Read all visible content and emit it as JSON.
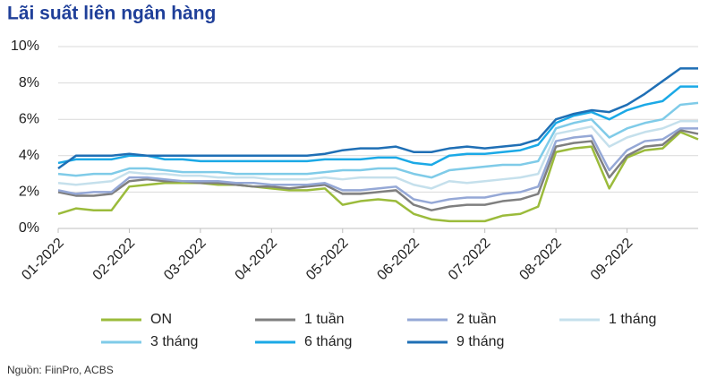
{
  "chart_data": {
    "type": "line",
    "title": "Lãi suất liên ngân hàng",
    "source": "Nguồn: FiinPro, ACBS",
    "categories": [
      "01-2022",
      null,
      null,
      null,
      "02-2022",
      null,
      null,
      null,
      "03-2022",
      null,
      null,
      null,
      "04-2022",
      null,
      null,
      null,
      "05-2022",
      null,
      null,
      null,
      "06-2022",
      null,
      null,
      null,
      "07-2022",
      null,
      null,
      null,
      "08-2022",
      null,
      null,
      null,
      "09-2022",
      null,
      null,
      null,
      null
    ],
    "ylim": [
      0,
      10
    ],
    "yticks": [
      {
        "value": 0,
        "label": "0%"
      },
      {
        "value": 2,
        "label": "2%"
      },
      {
        "value": 4,
        "label": "4%"
      },
      {
        "value": 6,
        "label": "6%"
      },
      {
        "value": 8,
        "label": "8%"
      },
      {
        "value": 10,
        "label": "10%"
      }
    ],
    "grid": true,
    "series": [
      {
        "name": "ON",
        "color": "#9bbb3b",
        "values": [
          0.8,
          1.1,
          1.0,
          1.0,
          2.3,
          2.4,
          2.5,
          2.5,
          2.5,
          2.4,
          2.4,
          2.3,
          2.2,
          2.1,
          2.1,
          2.2,
          1.3,
          1.5,
          1.6,
          1.5,
          0.8,
          0.5,
          0.4,
          0.4,
          0.4,
          0.7,
          0.8,
          1.2,
          4.2,
          4.4,
          4.5,
          2.2,
          3.9,
          4.3,
          4.4,
          5.3,
          4.9
        ]
      },
      {
        "name": "1 tuần",
        "color": "#7f7f7f",
        "values": [
          2.0,
          1.8,
          1.8,
          1.9,
          2.6,
          2.7,
          2.6,
          2.6,
          2.5,
          2.5,
          2.4,
          2.3,
          2.3,
          2.2,
          2.3,
          2.4,
          1.9,
          1.9,
          2.0,
          2.1,
          1.3,
          1.0,
          1.2,
          1.3,
          1.3,
          1.5,
          1.6,
          1.9,
          4.5,
          4.7,
          4.8,
          2.8,
          4.0,
          4.5,
          4.6,
          5.4,
          5.2
        ]
      },
      {
        "name": "2 tuần",
        "color": "#95a8d6",
        "values": [
          2.1,
          1.9,
          2.0,
          2.0,
          2.8,
          2.8,
          2.7,
          2.6,
          2.6,
          2.6,
          2.5,
          2.5,
          2.4,
          2.4,
          2.4,
          2.5,
          2.1,
          2.1,
          2.2,
          2.3,
          1.6,
          1.4,
          1.6,
          1.7,
          1.7,
          1.9,
          2.0,
          2.3,
          4.8,
          5.0,
          5.1,
          3.2,
          4.3,
          4.8,
          4.9,
          5.5,
          5.5
        ]
      },
      {
        "name": "1 tháng",
        "color": "#c5e0ec",
        "values": [
          2.5,
          2.4,
          2.5,
          2.6,
          3.1,
          3.0,
          3.0,
          2.9,
          2.9,
          2.8,
          2.8,
          2.8,
          2.7,
          2.7,
          2.7,
          2.8,
          2.7,
          2.8,
          2.8,
          2.8,
          2.4,
          2.2,
          2.6,
          2.5,
          2.6,
          2.7,
          2.8,
          3.0,
          5.2,
          5.4,
          5.6,
          4.5,
          5.0,
          5.3,
          5.5,
          5.9,
          5.9
        ]
      },
      {
        "name": "3 tháng",
        "color": "#7fcbe8",
        "values": [
          3.0,
          2.9,
          3.0,
          3.0,
          3.3,
          3.3,
          3.2,
          3.1,
          3.1,
          3.1,
          3.0,
          3.0,
          3.0,
          3.0,
          3.0,
          3.1,
          3.2,
          3.2,
          3.3,
          3.3,
          3.0,
          2.8,
          3.2,
          3.3,
          3.4,
          3.5,
          3.5,
          3.7,
          5.5,
          5.8,
          6.0,
          5.0,
          5.5,
          5.8,
          6.0,
          6.8,
          6.9
        ]
      },
      {
        "name": "6 tháng",
        "color": "#1ba9e6",
        "values": [
          3.6,
          3.8,
          3.8,
          3.8,
          4.0,
          4.0,
          3.8,
          3.8,
          3.7,
          3.7,
          3.7,
          3.7,
          3.7,
          3.7,
          3.7,
          3.8,
          3.8,
          3.8,
          3.9,
          3.9,
          3.6,
          3.5,
          4.0,
          4.1,
          4.1,
          4.2,
          4.3,
          4.6,
          5.8,
          6.2,
          6.4,
          6.0,
          6.5,
          6.8,
          7.0,
          7.8,
          7.8
        ]
      },
      {
        "name": "9 tháng",
        "color": "#1f6fb5",
        "values": [
          3.3,
          4.0,
          4.0,
          4.0,
          4.1,
          4.0,
          4.0,
          4.0,
          4.0,
          4.0,
          4.0,
          4.0,
          4.0,
          4.0,
          4.0,
          4.1,
          4.3,
          4.4,
          4.4,
          4.5,
          4.2,
          4.2,
          4.4,
          4.5,
          4.4,
          4.5,
          4.6,
          4.9,
          6.0,
          6.3,
          6.5,
          6.4,
          6.8,
          7.4,
          8.1,
          8.8,
          8.8
        ]
      }
    ]
  }
}
